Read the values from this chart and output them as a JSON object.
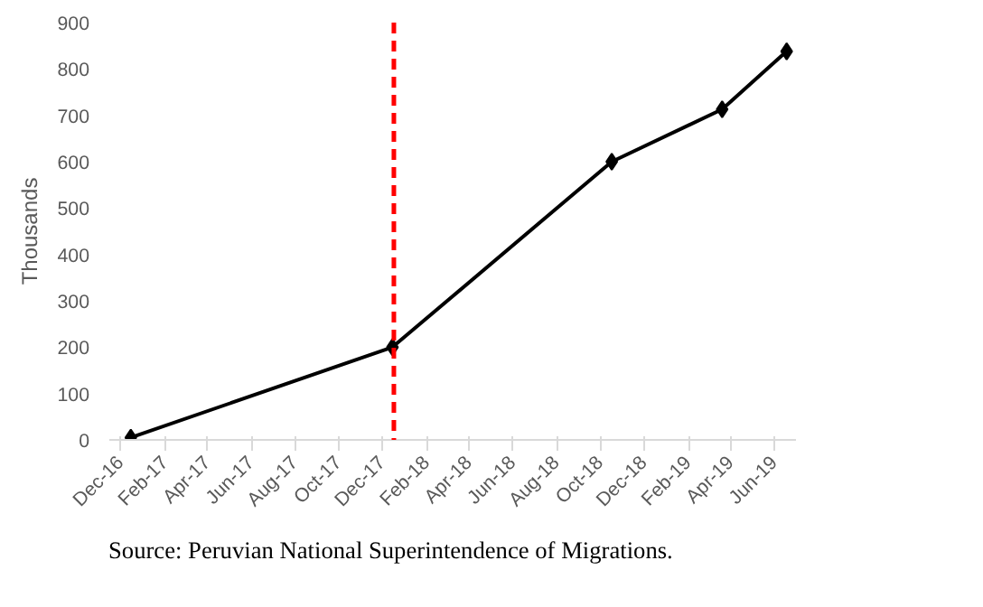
{
  "chart_data": {
    "type": "line",
    "ylabel": "Thousands",
    "x": [
      "2016-12-15",
      "2017-12-15",
      "2018-10-17",
      "2019-03-20",
      "2019-06-18"
    ],
    "series": [
      {
        "color": "#000000",
        "values": [
          5,
          200,
          600,
          713,
          838
        ]
      }
    ],
    "marker": "diamond",
    "line_style": "solid",
    "grid": false,
    "xlim": [
      "2016-11-15",
      "2019-07-01"
    ],
    "ylim": [
      0,
      900
    ],
    "yticks": [
      0,
      100,
      200,
      300,
      400,
      500,
      600,
      700,
      800,
      900
    ],
    "xticks": [
      {
        "value": "2016-12-01",
        "label": "Dec-16"
      },
      {
        "value": "2017-02-01",
        "label": "Feb-17"
      },
      {
        "value": "2017-04-01",
        "label": "Apr-17"
      },
      {
        "value": "2017-06-01",
        "label": "Jun-17"
      },
      {
        "value": "2017-08-01",
        "label": "Aug-17"
      },
      {
        "value": "2017-10-01",
        "label": "Oct-17"
      },
      {
        "value": "2017-12-01",
        "label": "Dec-17"
      },
      {
        "value": "2018-02-01",
        "label": "Feb-18"
      },
      {
        "value": "2018-04-01",
        "label": "Apr-18"
      },
      {
        "value": "2018-06-01",
        "label": "Jun-18"
      },
      {
        "value": "2018-08-01",
        "label": "Aug-18"
      },
      {
        "value": "2018-10-01",
        "label": "Oct-18"
      },
      {
        "value": "2018-12-01",
        "label": "Dec-18"
      },
      {
        "value": "2019-02-01",
        "label": "Feb-19"
      },
      {
        "value": "2019-04-01",
        "label": "Apr-19"
      },
      {
        "value": "2019-06-01",
        "label": "Jun-19"
      }
    ],
    "ref_lines": [
      {
        "axis": "x",
        "value": "2017-12-17",
        "label": null,
        "color": "#ff0000",
        "line_style": "dashed"
      }
    ],
    "annotations": [
      "Source: Peruvian National Superintendence of Migrations."
    ]
  }
}
